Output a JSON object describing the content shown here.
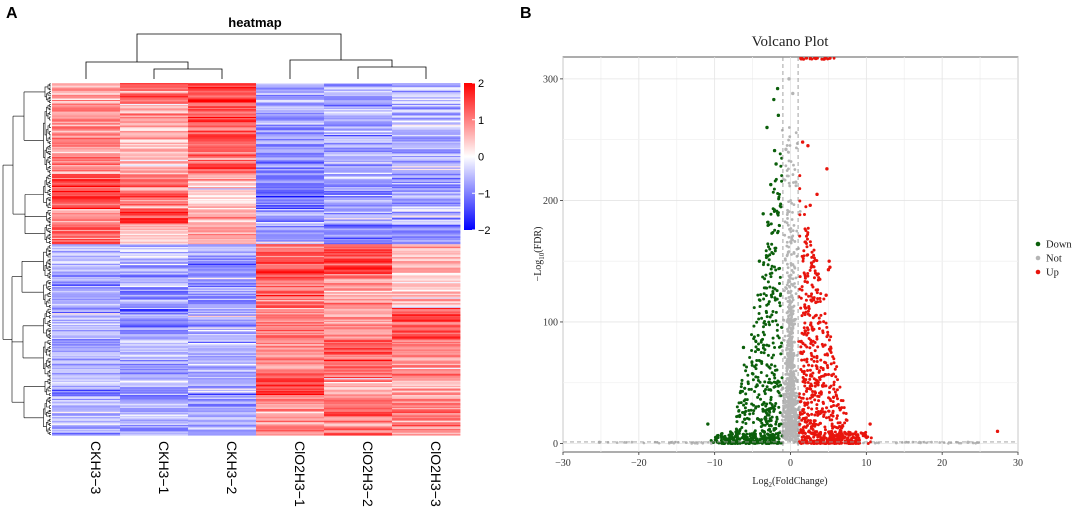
{
  "panels": {
    "a": "A",
    "b": "B"
  },
  "chart_data": [
    {
      "type": "heatmap",
      "title": "heatmap",
      "samples": [
        "CKH3−3",
        "CKH3−1",
        "CKH3−2",
        "ClO2H3−1",
        "ClO2H3−2",
        "ClO2H3−3"
      ],
      "color_scale": {
        "min": -2,
        "max": 2,
        "low": "#0000FF",
        "mid": "#FFFFFF",
        "high": "#FF0000"
      },
      "colorbar_ticks": [
        {
          "label": "2",
          "value": 2
        },
        {
          "label": "1",
          "value": 1
        },
        {
          "label": "0",
          "value": 0
        },
        {
          "label": "−1",
          "value": -1
        },
        {
          "label": "−2",
          "value": -2
        }
      ],
      "row_clusters": [
        {
          "fraction": 0.06,
          "values": [
            0.7,
            1.2,
            1.6,
            -0.7,
            -0.6,
            -0.5
          ]
        },
        {
          "fraction": 0.2,
          "values": [
            0.9,
            0.6,
            1.3,
            -0.8,
            -0.7,
            -0.6
          ]
        },
        {
          "fraction": 0.1,
          "values": [
            1.5,
            1.0,
            0.4,
            -0.9,
            -0.8,
            -0.8
          ]
        },
        {
          "fraction": 0.04,
          "values": [
            0.7,
            1.6,
            0.6,
            -0.7,
            -0.6,
            -0.6
          ]
        },
        {
          "fraction": 0.06,
          "values": [
            1.2,
            0.5,
            0.7,
            -0.9,
            -0.8,
            -0.8
          ]
        },
        {
          "fraction": 0.1,
          "values": [
            -0.6,
            -0.6,
            -0.7,
            1.2,
            1.4,
            0.4
          ]
        },
        {
          "fraction": 0.08,
          "values": [
            -0.7,
            -0.7,
            -0.8,
            1.1,
            0.9,
            0.5
          ]
        },
        {
          "fraction": 0.09,
          "values": [
            -0.6,
            -0.7,
            -0.7,
            0.8,
            0.7,
            1.3
          ]
        },
        {
          "fraction": 0.11,
          "values": [
            -0.5,
            -0.6,
            -0.6,
            0.9,
            1.2,
            0.9
          ]
        },
        {
          "fraction": 0.05,
          "values": [
            -0.7,
            -0.6,
            -0.7,
            1.6,
            0.8,
            0.7
          ]
        },
        {
          "fraction": 0.11,
          "values": [
            -0.6,
            -0.6,
            -0.9,
            0.8,
            1.0,
            0.9
          ]
        }
      ],
      "column_dendrogram": "((CKH3−3,(CKH3−1,CKH3−2)),(ClO2H3−1,(ClO2H3−2,ClO2H3−3)))"
    },
    {
      "type": "scatter",
      "title": "Volcano Plot",
      "xlabel": "Log2(FoldChange)",
      "ylabel": "−Log10(FDR)",
      "xlim": [
        -30,
        30
      ],
      "ylim": [
        -7,
        318
      ],
      "x_ticks": [
        -30,
        -20,
        -10,
        0,
        10,
        20,
        30
      ],
      "y_ticks": [
        0,
        100,
        200,
        300
      ],
      "x_tick_labels": [
        "−30",
        "−20",
        "−10",
        "0",
        "10",
        "20",
        "30"
      ],
      "y_tick_labels": [
        "0",
        "100",
        "200",
        "300"
      ],
      "thresholds": {
        "log2fc": [
          -1,
          1
        ],
        "neg_log10_fdr": 1.3
      },
      "legend_position": "right",
      "series": [
        {
          "name": "Down",
          "color": "#0B5F0B"
        },
        {
          "name": "Not",
          "color": "#B5B5B5"
        },
        {
          "name": "Up",
          "color": "#E8140C"
        }
      ],
      "highlight_points": [
        {
          "series": "Down",
          "x": -1.7,
          "y": 292
        },
        {
          "series": "Down",
          "x": -2.2,
          "y": 283
        },
        {
          "series": "Down",
          "x": -1.6,
          "y": 270
        },
        {
          "series": "Down",
          "x": -3.1,
          "y": 260
        },
        {
          "series": "Down",
          "x": -2.1,
          "y": 241
        },
        {
          "series": "Down",
          "x": -1.9,
          "y": 230
        },
        {
          "series": "Down",
          "x": -2.6,
          "y": 213
        },
        {
          "series": "Down",
          "x": -3.6,
          "y": 189
        },
        {
          "series": "Down",
          "x": -4.1,
          "y": 150
        },
        {
          "series": "Down",
          "x": -6.2,
          "y": 79
        },
        {
          "series": "Down",
          "x": -10.9,
          "y": 16
        },
        {
          "series": "Up",
          "x": 1.6,
          "y": 248
        },
        {
          "series": "Up",
          "x": 2.3,
          "y": 245
        },
        {
          "series": "Up",
          "x": 4.8,
          "y": 226
        },
        {
          "series": "Up",
          "x": 3.5,
          "y": 205
        },
        {
          "series": "Up",
          "x": 2.6,
          "y": 196
        },
        {
          "series": "Up",
          "x": 5.1,
          "y": 150
        },
        {
          "series": "Up",
          "x": 5.0,
          "y": 143
        },
        {
          "series": "Up",
          "x": 5.2,
          "y": 145
        },
        {
          "series": "Up",
          "x": 4.7,
          "y": 122
        },
        {
          "series": "Up",
          "x": 10.5,
          "y": 16
        },
        {
          "series": "Up",
          "x": 27.3,
          "y": 10
        },
        {
          "series": "Not",
          "x": -0.2,
          "y": 300
        },
        {
          "series": "Not",
          "x": 0.3,
          "y": 288
        },
        {
          "series": "Not",
          "x": -0.6,
          "y": 242
        },
        {
          "series": "Not",
          "x": 0.7,
          "y": 215
        },
        {
          "series": "Not",
          "x": -25.2,
          "y": 1
        },
        {
          "series": "Not",
          "x": 23.4,
          "y": 1
        }
      ]
    }
  ]
}
